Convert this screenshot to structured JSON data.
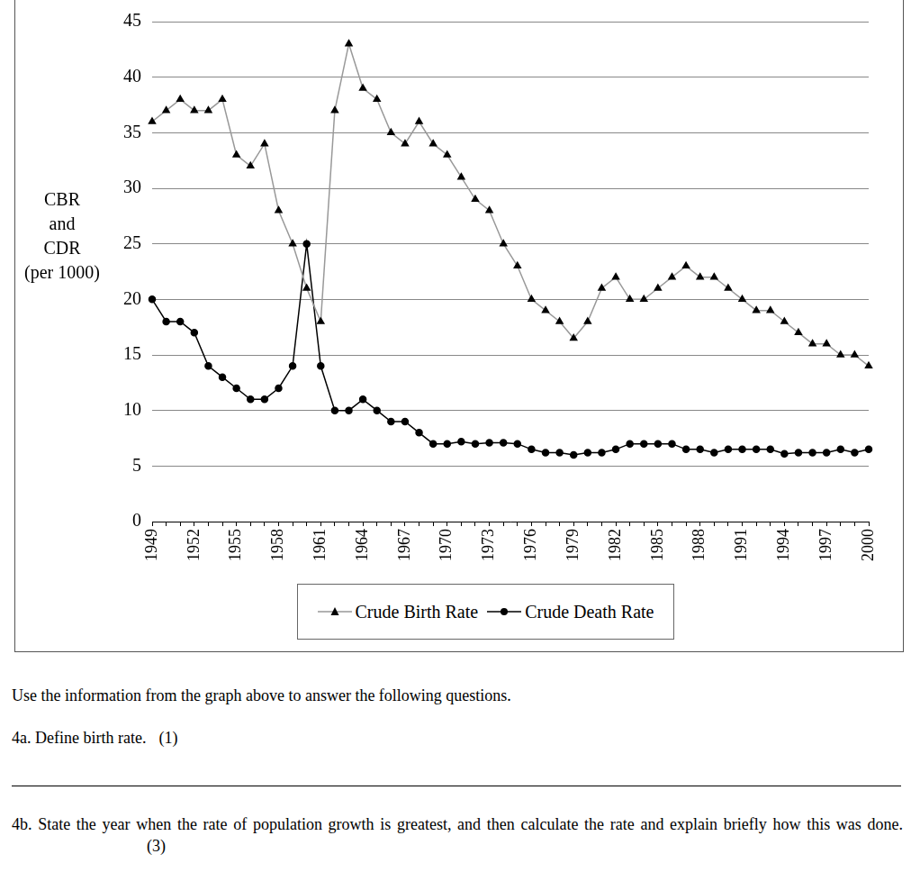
{
  "chart_data": {
    "type": "line",
    "ylabel": "CBR\nand\nCDR\n(per 1000)",
    "categories": [
      "1949",
      null,
      null,
      "1952",
      null,
      null,
      "1955",
      null,
      null,
      "1958",
      null,
      null,
      "1961",
      null,
      null,
      "1964",
      null,
      null,
      "1967",
      null,
      null,
      "1970",
      null,
      null,
      "1973",
      null,
      null,
      "1976",
      null,
      null,
      "1979",
      null,
      null,
      "1982",
      null,
      null,
      "1985",
      null,
      null,
      "1988",
      null,
      null,
      "1991",
      null,
      null,
      "1994",
      null,
      null,
      "1997",
      null,
      null,
      "2000"
    ],
    "series": [
      {
        "name": "Crude Birth Rate",
        "color": "#999999",
        "marker": "triangle",
        "line_style": "solid",
        "values": [
          36,
          37,
          38,
          37,
          37,
          38,
          33,
          32,
          34,
          28,
          25,
          21,
          18,
          37,
          43,
          39,
          38,
          35,
          34,
          36,
          34,
          33,
          31,
          29,
          28,
          25,
          23,
          20,
          19,
          18,
          16.5,
          18,
          21,
          22,
          20,
          20,
          21,
          22,
          23,
          22,
          22,
          21,
          20,
          19,
          19,
          18,
          17,
          16,
          16,
          15,
          15,
          14
        ]
      },
      {
        "name": "Crude Death Rate",
        "color": "#000000",
        "marker": "circle",
        "line_style": "solid",
        "values": [
          20,
          18,
          18,
          17,
          14,
          13,
          12,
          11,
          11,
          12,
          14,
          25,
          14,
          10,
          10,
          11,
          10,
          9,
          9,
          8,
          7,
          7,
          7.2,
          7,
          7.1,
          7.1,
          7,
          6.5,
          6.2,
          6.2,
          6,
          6.2,
          6.2,
          6.5,
          7,
          7,
          7,
          7,
          6.5,
          6.5,
          6.2,
          6.5,
          6.5,
          6.5,
          6.5,
          6.1,
          6.2,
          6.2,
          6.2,
          6.5,
          6.2,
          6.5
        ]
      }
    ],
    "ylim": [
      0,
      45
    ],
    "yticks": [
      0,
      5,
      10,
      15,
      20,
      25,
      30,
      35,
      40,
      45
    ],
    "grid": true,
    "legend": "bottom"
  },
  "text": {
    "intro": "Use the information from the graph above to answer the following questions.",
    "questions": [
      {
        "text": "4a. Define birth rate.",
        "marks": "(1)"
      },
      {
        "text": "4b. State the year when the rate of population growth is greatest, and then calculate the rate and explain briefly how this was done.",
        "marks": "(3)"
      }
    ]
  }
}
